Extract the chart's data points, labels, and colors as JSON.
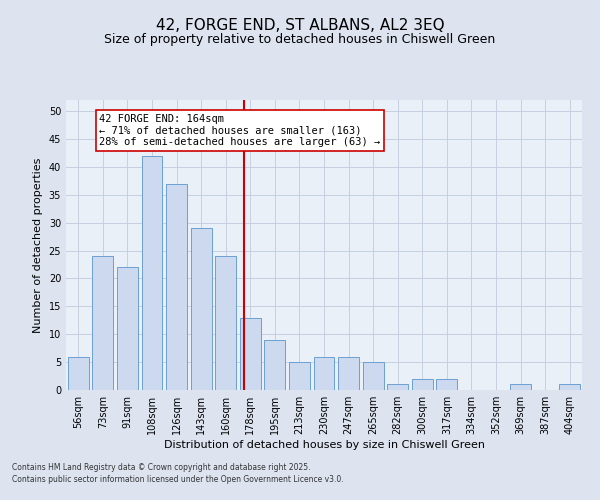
{
  "title1": "42, FORGE END, ST ALBANS, AL2 3EQ",
  "title2": "Size of property relative to detached houses in Chiswell Green",
  "xlabel": "Distribution of detached houses by size in Chiswell Green",
  "ylabel": "Number of detached properties",
  "bar_labels": [
    "56sqm",
    "73sqm",
    "91sqm",
    "108sqm",
    "126sqm",
    "143sqm",
    "160sqm",
    "178sqm",
    "195sqm",
    "213sqm",
    "230sqm",
    "247sqm",
    "265sqm",
    "282sqm",
    "300sqm",
    "317sqm",
    "334sqm",
    "352sqm",
    "369sqm",
    "387sqm",
    "404sqm"
  ],
  "bar_values": [
    6,
    24,
    22,
    42,
    37,
    29,
    24,
    13,
    9,
    5,
    6,
    6,
    5,
    1,
    2,
    2,
    0,
    0,
    1,
    0,
    1
  ],
  "bar_color": "#ccd9ee",
  "bar_edge_color": "#6b9fd4",
  "vline_color": "#cc0000",
  "annotation_text": "42 FORGE END: 164sqm\n← 71% of detached houses are smaller (163)\n28% of semi-detached houses are larger (63) →",
  "annotation_box_color": "white",
  "annotation_box_edge_color": "#cc0000",
  "ylim": [
    0,
    52
  ],
  "yticks": [
    0,
    5,
    10,
    15,
    20,
    25,
    30,
    35,
    40,
    45,
    50
  ],
  "title1_fontsize": 11,
  "title2_fontsize": 9,
  "xlabel_fontsize": 8,
  "ylabel_fontsize": 8,
  "tick_fontsize": 7,
  "annot_fontsize": 7.5,
  "footnote1": "Contains HM Land Registry data © Crown copyright and database right 2025.",
  "footnote2": "Contains public sector information licensed under the Open Government Licence v3.0.",
  "bg_color": "#dde4f0",
  "plot_bg_color": "#eaf0f8",
  "grid_color": "#c5cfe0"
}
